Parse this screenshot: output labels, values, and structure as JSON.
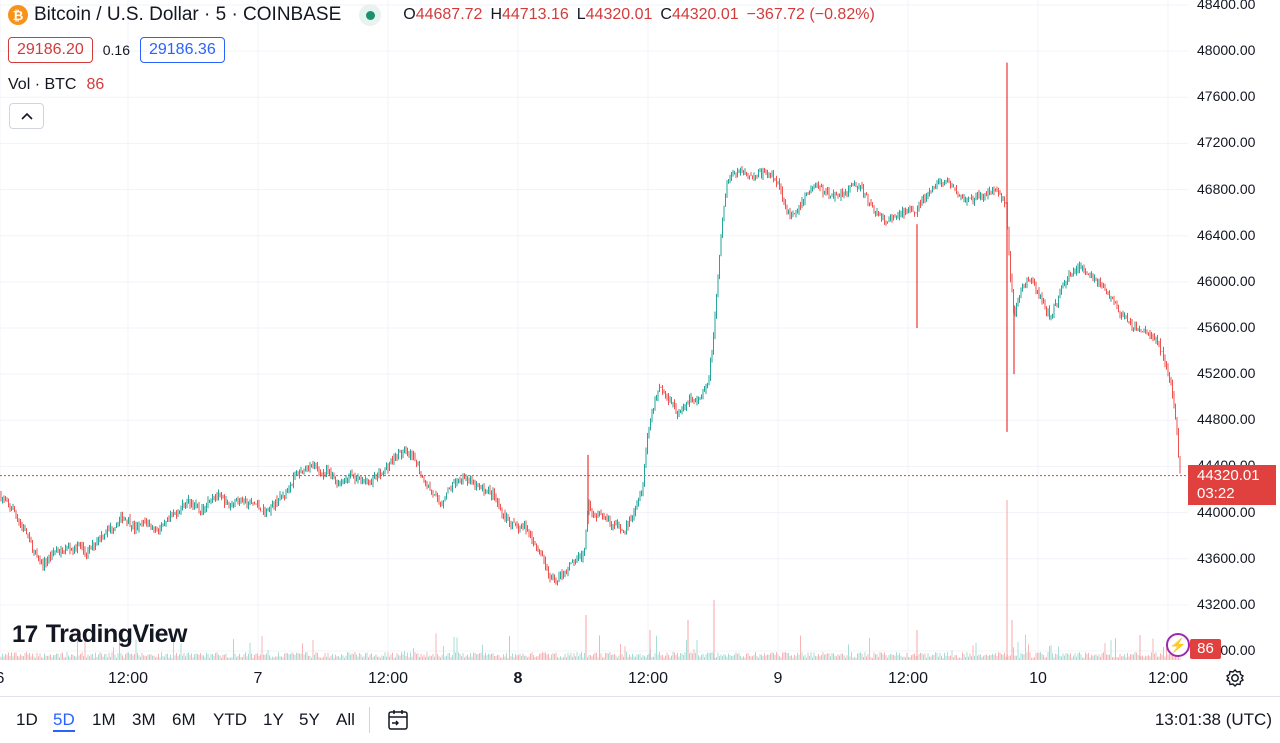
{
  "header": {
    "symbol": "Bitcoin / U.S. Dollar · 5 · COINBASE",
    "coin_icon": "bitcoin-icon",
    "o_label": "O",
    "o_value": "44687.72",
    "h_label": "H",
    "h_value": "44713.16",
    "l_label": "L",
    "l_value": "44320.01",
    "c_label": "C",
    "c_value": "44320.01",
    "change": "−367.72 (−0.82%)"
  },
  "quote": {
    "sell": "29186.20",
    "spread": "0.16",
    "buy": "29186.36"
  },
  "volume_legend": {
    "label": "Vol · BTC",
    "value": "86"
  },
  "logo": {
    "text": "TradingView"
  },
  "price_axis": [
    "48400.00",
    "48000.00",
    "47600.00",
    "47200.00",
    "46800.00",
    "46400.00",
    "46000.00",
    "45600.00",
    "45200.00",
    "44800.00",
    "44400.00",
    "44000.00",
    "43600.00",
    "43200.00",
    "42800.00"
  ],
  "current_price": {
    "value": "44320.01",
    "countdown": "03:22"
  },
  "volume_tag": "86",
  "time_axis": [
    {
      "label": "6",
      "bold": false
    },
    {
      "label": "12:00",
      "bold": false
    },
    {
      "label": "7",
      "bold": false
    },
    {
      "label": "12:00",
      "bold": false
    },
    {
      "label": "8",
      "bold": true
    },
    {
      "label": "12:00",
      "bold": false
    },
    {
      "label": "9",
      "bold": false
    },
    {
      "label": "12:00",
      "bold": false
    },
    {
      "label": "10",
      "bold": false
    },
    {
      "label": "12:00",
      "bold": false
    }
  ],
  "ranges": [
    "1D",
    "5D",
    "1M",
    "3M",
    "6M",
    "YTD",
    "1Y",
    "5Y",
    "All"
  ],
  "active_range": "5D",
  "clock": "13:01:38 (UTC)",
  "colors": {
    "up": "#26a69a",
    "down": "#ef5350",
    "accent": "#2962ff"
  },
  "chart_data": {
    "type": "candlestick",
    "interval": "5m",
    "ylim": [
      42800,
      48400
    ],
    "close_path": [
      [
        0,
        44150
      ],
      [
        8,
        44060
      ],
      [
        14,
        44020
      ],
      [
        20,
        43900
      ],
      [
        26,
        43830
      ],
      [
        32,
        43700
      ],
      [
        38,
        43580
      ],
      [
        44,
        43550
      ],
      [
        50,
        43620
      ],
      [
        56,
        43680
      ],
      [
        62,
        43650
      ],
      [
        68,
        43700
      ],
      [
        74,
        43680
      ],
      [
        80,
        43720
      ],
      [
        86,
        43640
      ],
      [
        92,
        43700
      ],
      [
        98,
        43780
      ],
      [
        104,
        43820
      ],
      [
        110,
        43860
      ],
      [
        116,
        43900
      ],
      [
        122,
        43960
      ],
      [
        128,
        43940
      ],
      [
        134,
        43860
      ],
      [
        140,
        43880
      ],
      [
        146,
        43930
      ],
      [
        152,
        43870
      ],
      [
        158,
        43850
      ],
      [
        164,
        43880
      ],
      [
        170,
        43950
      ],
      [
        176,
        44000
      ],
      [
        182,
        44050
      ],
      [
        188,
        44100
      ],
      [
        194,
        44070
      ],
      [
        200,
        44000
      ],
      [
        206,
        44070
      ],
      [
        212,
        44150
      ],
      [
        218,
        44140
      ],
      [
        224,
        44100
      ],
      [
        230,
        44050
      ],
      [
        236,
        44120
      ],
      [
        242,
        44100
      ],
      [
        248,
        44070
      ],
      [
        254,
        44080
      ],
      [
        260,
        44040
      ],
      [
        266,
        44000
      ],
      [
        272,
        44060
      ],
      [
        278,
        44110
      ],
      [
        284,
        44150
      ],
      [
        290,
        44240
      ],
      [
        296,
        44330
      ],
      [
        302,
        44360
      ],
      [
        308,
        44400
      ],
      [
        314,
        44410
      ],
      [
        320,
        44340
      ],
      [
        326,
        44350
      ],
      [
        332,
        44320
      ],
      [
        338,
        44260
      ],
      [
        344,
        44270
      ],
      [
        350,
        44330
      ],
      [
        356,
        44280
      ],
      [
        362,
        44300
      ],
      [
        368,
        44250
      ],
      [
        374,
        44300
      ],
      [
        380,
        44330
      ],
      [
        386,
        44380
      ],
      [
        392,
        44450
      ],
      [
        398,
        44510
      ],
      [
        404,
        44520
      ],
      [
        410,
        44490
      ],
      [
        416,
        44450
      ],
      [
        422,
        44310
      ],
      [
        428,
        44230
      ],
      [
        434,
        44150
      ],
      [
        440,
        44060
      ],
      [
        446,
        44160
      ],
      [
        452,
        44230
      ],
      [
        458,
        44280
      ],
      [
        464,
        44320
      ],
      [
        470,
        44260
      ],
      [
        476,
        44230
      ],
      [
        482,
        44200
      ],
      [
        488,
        44190
      ],
      [
        494,
        44150
      ],
      [
        500,
        44020
      ],
      [
        506,
        43960
      ],
      [
        512,
        43900
      ],
      [
        518,
        43850
      ],
      [
        524,
        43880
      ],
      [
        530,
        43820
      ],
      [
        536,
        43700
      ],
      [
        542,
        43650
      ],
      [
        548,
        43450
      ],
      [
        554,
        43400
      ],
      [
        560,
        43450
      ],
      [
        566,
        43500
      ],
      [
        572,
        43560
      ],
      [
        578,
        43600
      ],
      [
        584,
        43640
      ],
      [
        588,
        44100
      ],
      [
        594,
        43960
      ],
      [
        600,
        44020
      ],
      [
        606,
        43960
      ],
      [
        612,
        43900
      ],
      [
        618,
        43880
      ],
      [
        624,
        43820
      ],
      [
        630,
        43940
      ],
      [
        636,
        44070
      ],
      [
        642,
        44200
      ],
      [
        648,
        44700
      ],
      [
        654,
        44950
      ],
      [
        660,
        45100
      ],
      [
        666,
        45000
      ],
      [
        672,
        44970
      ],
      [
        678,
        44850
      ],
      [
        684,
        44900
      ],
      [
        690,
        45000
      ],
      [
        696,
        44950
      ],
      [
        702,
        45010
      ],
      [
        708,
        45110
      ],
      [
        714,
        45560
      ],
      [
        718,
        46050
      ],
      [
        722,
        46500
      ],
      [
        726,
        46800
      ],
      [
        730,
        46920
      ],
      [
        736,
        46950
      ],
      [
        742,
        46960
      ],
      [
        748,
        46940
      ],
      [
        754,
        46910
      ],
      [
        760,
        46950
      ],
      [
        766,
        46930
      ],
      [
        772,
        46920
      ],
      [
        778,
        46870
      ],
      [
        784,
        46700
      ],
      [
        790,
        46560
      ],
      [
        796,
        46580
      ],
      [
        802,
        46690
      ],
      [
        808,
        46780
      ],
      [
        814,
        46840
      ],
      [
        820,
        46820
      ],
      [
        826,
        46760
      ],
      [
        832,
        46750
      ],
      [
        838,
        46760
      ],
      [
        844,
        46780
      ],
      [
        850,
        46810
      ],
      [
        856,
        46850
      ],
      [
        862,
        46790
      ],
      [
        868,
        46700
      ],
      [
        874,
        46630
      ],
      [
        880,
        46560
      ],
      [
        886,
        46520
      ],
      [
        892,
        46540
      ],
      [
        898,
        46570
      ],
      [
        904,
        46600
      ],
      [
        910,
        46650
      ],
      [
        916,
        46620
      ],
      [
        922,
        46700
      ],
      [
        928,
        46750
      ],
      [
        934,
        46820
      ],
      [
        940,
        46870
      ],
      [
        946,
        46860
      ],
      [
        952,
        46820
      ],
      [
        958,
        46760
      ],
      [
        964,
        46720
      ],
      [
        970,
        46700
      ],
      [
        976,
        46720
      ],
      [
        982,
        46750
      ],
      [
        988,
        46780
      ],
      [
        994,
        46800
      ],
      [
        1000,
        46750
      ],
      [
        1006,
        46670
      ],
      [
        1010,
        46100
      ],
      [
        1014,
        45700
      ],
      [
        1018,
        45850
      ],
      [
        1022,
        45950
      ],
      [
        1026,
        46000
      ],
      [
        1032,
        46000
      ],
      [
        1038,
        45900
      ],
      [
        1044,
        45800
      ],
      [
        1050,
        45700
      ],
      [
        1056,
        45800
      ],
      [
        1062,
        45950
      ],
      [
        1068,
        46050
      ],
      [
        1074,
        46100
      ],
      [
        1080,
        46120
      ],
      [
        1086,
        46090
      ],
      [
        1092,
        46060
      ],
      [
        1098,
        46000
      ],
      [
        1104,
        45950
      ],
      [
        1110,
        45870
      ],
      [
        1116,
        45790
      ],
      [
        1122,
        45700
      ],
      [
        1128,
        45650
      ],
      [
        1134,
        45600
      ],
      [
        1140,
        45580
      ],
      [
        1146,
        45560
      ],
      [
        1152,
        45530
      ],
      [
        1158,
        45480
      ],
      [
        1164,
        45340
      ],
      [
        1168,
        45200
      ],
      [
        1172,
        45050
      ],
      [
        1176,
        44800
      ],
      [
        1180,
        44320
      ]
    ],
    "spikes": [
      {
        "day_x": 588,
        "high": 44500,
        "low": 43900
      },
      {
        "day_x": 917,
        "high": 46500,
        "low": 45600
      },
      {
        "day_x": 1007,
        "high": 47900,
        "low": 44700
      },
      {
        "day_x": 1014,
        "high": 45800,
        "low": 45200
      }
    ],
    "volume_note": "volume bars along bottom, spikes near 8 12:00 and 10 00:00"
  }
}
